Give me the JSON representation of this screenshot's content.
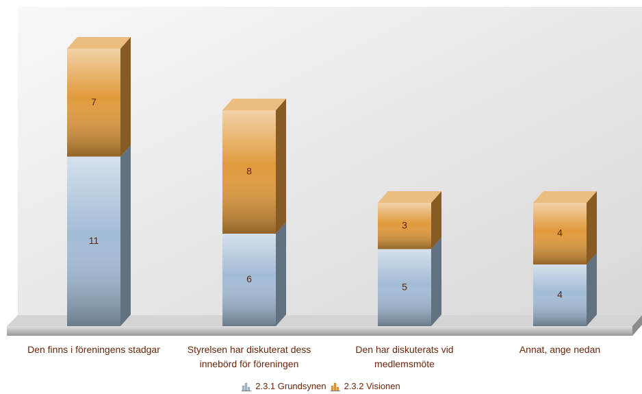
{
  "chart_data": {
    "type": "stacked-bar-3d",
    "categories": [
      "Den finns i föreningens stadgar",
      "Styrelsen har diskuterat dess innebörd för föreningen",
      "Den har diskuterats vid medlemsmöte",
      "Annat, ange nedan"
    ],
    "series": [
      {
        "name": "2.3.1 Grundsynen",
        "color": "#a3bcd6",
        "values": [
          11,
          6,
          5,
          4
        ]
      },
      {
        "name": "2.3.2 Visionen",
        "color": "#e19a3c",
        "values": [
          7,
          8,
          3,
          4
        ]
      }
    ],
    "legend": "bottom"
  }
}
